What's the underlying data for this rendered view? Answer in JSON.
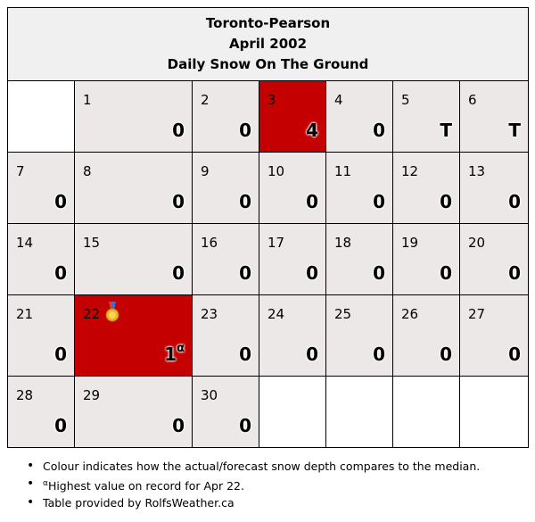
{
  "header": {
    "station": "Toronto-Pearson",
    "month": "April 2002",
    "title": "Daily Snow On The Ground"
  },
  "colors": {
    "above_median": "#c40000",
    "normal": "#ece8e8",
    "empty": "#ffffff",
    "header_bg": "#f0f0f0"
  },
  "weeks": [
    [
      {
        "day": "",
        "value": ""
      },
      {
        "day": "1",
        "value": "0"
      },
      {
        "day": "2",
        "value": "0"
      },
      {
        "day": "3",
        "value": "4",
        "highlight": true
      },
      {
        "day": "4",
        "value": "0"
      },
      {
        "day": "5",
        "value": "T"
      },
      {
        "day": "6",
        "value": "T"
      }
    ],
    [
      {
        "day": "7",
        "value": "0"
      },
      {
        "day": "8",
        "value": "0"
      },
      {
        "day": "9",
        "value": "0"
      },
      {
        "day": "10",
        "value": "0"
      },
      {
        "day": "11",
        "value": "0"
      },
      {
        "day": "12",
        "value": "0"
      },
      {
        "day": "13",
        "value": "0"
      }
    ],
    [
      {
        "day": "14",
        "value": "0"
      },
      {
        "day": "15",
        "value": "0"
      },
      {
        "day": "16",
        "value": "0"
      },
      {
        "day": "17",
        "value": "0"
      },
      {
        "day": "18",
        "value": "0"
      },
      {
        "day": "19",
        "value": "0"
      },
      {
        "day": "20",
        "value": "0"
      }
    ],
    [
      {
        "day": "21",
        "value": "0"
      },
      {
        "day": "22",
        "value": "1",
        "note": "α",
        "highlight": true,
        "medal": true
      },
      {
        "day": "23",
        "value": "0"
      },
      {
        "day": "24",
        "value": "0"
      },
      {
        "day": "25",
        "value": "0"
      },
      {
        "day": "26",
        "value": "0"
      },
      {
        "day": "27",
        "value": "0"
      }
    ],
    [
      {
        "day": "28",
        "value": "0"
      },
      {
        "day": "29",
        "value": "0"
      },
      {
        "day": "30",
        "value": "0"
      },
      {
        "day": "",
        "value": ""
      },
      {
        "day": "",
        "value": ""
      },
      {
        "day": "",
        "value": ""
      },
      {
        "day": "",
        "value": ""
      }
    ]
  ],
  "notes": {
    "colour": "Colour indicates how the actual/forecast snow depth compares to the median.",
    "record_mark": "α",
    "record": "Highest value on record for Apr 22.",
    "credit": "Table provided by RolfsWeather.ca"
  }
}
